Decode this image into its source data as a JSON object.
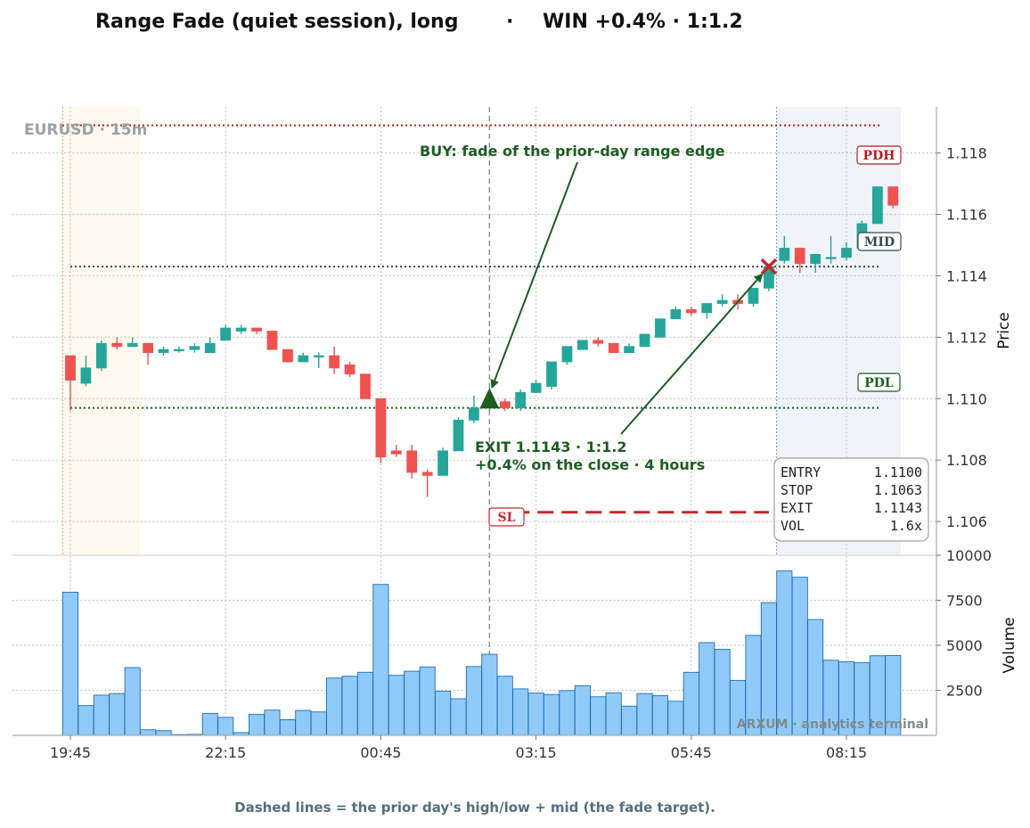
{
  "title_left": "Range Fade (quiet session), long",
  "title_sep": "·",
  "title_right": "WIN +0.4% · 1:1.2",
  "symbol_label": "EURUSD · 15m",
  "watermark": "ARXUM · analytics terminal",
  "footer": "Dashed lines = the prior day's high/low + mid (the fade target).",
  "colors": {
    "bull": "#26a69a",
    "bear": "#ef5350",
    "volume_fill": "#90caf9",
    "volume_edge": "#1f6fb2",
    "pdh": "#b71c1c",
    "pdl": "#1b5e20",
    "mid": "#37474f",
    "sl": "#c62828",
    "exit_marker": "#c62828",
    "entry_marker": "#1b5e20"
  },
  "annotations": {
    "buy": "BUY: fade of the prior-day range edge",
    "exit_line1": "EXIT 1.1143 · 1:1.2",
    "exit_line2": "+0.4% on the close  ·  4 hours",
    "pdh_tag": "PDH",
    "mid_tag": "MID",
    "pdl_tag": "PDL",
    "sl_tag": "SL"
  },
  "info_box": [
    {
      "label": "ENTRY",
      "value": "1.1100"
    },
    {
      "label": "STOP",
      "value": "1.1063"
    },
    {
      "label": "EXIT",
      "value": "1.1143"
    },
    {
      "label": "VOL",
      "value": "1.6x"
    }
  ],
  "chart_data": {
    "type": "candlestick",
    "timeframe": "15m",
    "price_axis": {
      "label": "Price",
      "range": [
        1.1049,
        1.1195
      ],
      "ticks": [
        1.106,
        1.108,
        1.11,
        1.112,
        1.114,
        1.116,
        1.118
      ],
      "tick_labels": [
        "1.106",
        "1.108",
        "1.110",
        "1.112",
        "1.114",
        "1.116",
        "1.118"
      ]
    },
    "volume_axis": {
      "label": "Volume",
      "range": [
        0,
        10000
      ],
      "ticks": [
        2500,
        5000,
        7500,
        10000
      ],
      "tick_labels": [
        "2500",
        "5000",
        "7500",
        "10000"
      ]
    },
    "x_axis": {
      "tick_labels": [
        "19:45",
        "22:15",
        "00:45",
        "03:15",
        "05:45",
        "08:15"
      ],
      "tick_bar_index": [
        0,
        10,
        20,
        30,
        40,
        50
      ]
    },
    "levels": {
      "pdh": 1.1189,
      "pdl": 1.1097,
      "mid": 1.1143,
      "stop": 1.1063
    },
    "trade": {
      "side": "long",
      "entry_bar": 27,
      "entry_price": 1.11,
      "stop": 1.1063,
      "exit_bar": 45,
      "exit_price": 1.1143,
      "result": "WIN +0.4%",
      "rr": "1:1.2"
    },
    "shaded_regions": [
      {
        "from_bar": -0.5,
        "to_bar": 4.5,
        "kind": "session"
      },
      {
        "from_bar": 45.5,
        "to_bar": 53.5,
        "kind": "session"
      }
    ],
    "candles": [
      {
        "o": 1.1114,
        "h": 1.1114,
        "l": 1.1096,
        "c": 1.1106,
        "v": 7950
      },
      {
        "o": 1.1105,
        "h": 1.1114,
        "l": 1.1104,
        "c": 1.111,
        "v": 1650
      },
      {
        "o": 1.111,
        "h": 1.1119,
        "l": 1.1109,
        "c": 1.1118,
        "v": 2230
      },
      {
        "o": 1.1118,
        "h": 1.112,
        "l": 1.1116,
        "c": 1.1117,
        "v": 2320
      },
      {
        "o": 1.1117,
        "h": 1.112,
        "l": 1.1117,
        "c": 1.1118,
        "v": 3760
      },
      {
        "o": 1.1118,
        "h": 1.1118,
        "l": 1.1111,
        "c": 1.1115,
        "v": 310
      },
      {
        "o": 1.1115,
        "h": 1.1117,
        "l": 1.1114,
        "c": 1.1116,
        "v": 260
      },
      {
        "o": 1.1116,
        "h": 1.1117,
        "l": 1.1115,
        "c": 1.1116,
        "v": 40
      },
      {
        "o": 1.1116,
        "h": 1.1118,
        "l": 1.1115,
        "c": 1.1117,
        "v": 50
      },
      {
        "o": 1.1115,
        "h": 1.112,
        "l": 1.1115,
        "c": 1.1118,
        "v": 1220
      },
      {
        "o": 1.1119,
        "h": 1.1124,
        "l": 1.1119,
        "c": 1.1123,
        "v": 1000
      },
      {
        "o": 1.1122,
        "h": 1.1124,
        "l": 1.1121,
        "c": 1.1123,
        "v": 150
      },
      {
        "o": 1.1123,
        "h": 1.1123,
        "l": 1.1121,
        "c": 1.1122,
        "v": 1160
      },
      {
        "o": 1.1122,
        "h": 1.1122,
        "l": 1.1116,
        "c": 1.1116,
        "v": 1400
      },
      {
        "o": 1.1116,
        "h": 1.1116,
        "l": 1.1112,
        "c": 1.1112,
        "v": 870
      },
      {
        "o": 1.1112,
        "h": 1.1115,
        "l": 1.1112,
        "c": 1.1114,
        "v": 1380
      },
      {
        "o": 1.1114,
        "h": 1.1115,
        "l": 1.111,
        "c": 1.1114,
        "v": 1300
      },
      {
        "o": 1.1114,
        "h": 1.1117,
        "l": 1.1108,
        "c": 1.111,
        "v": 3180
      },
      {
        "o": 1.1111,
        "h": 1.1112,
        "l": 1.1107,
        "c": 1.1108,
        "v": 3280
      },
      {
        "o": 1.1108,
        "h": 1.1108,
        "l": 1.11,
        "c": 1.11,
        "v": 3500
      },
      {
        "o": 1.11,
        "h": 1.11,
        "l": 1.1079,
        "c": 1.1081,
        "v": 8380
      },
      {
        "o": 1.1083,
        "h": 1.1085,
        "l": 1.1081,
        "c": 1.1082,
        "v": 3330
      },
      {
        "o": 1.1083,
        "h": 1.1085,
        "l": 1.1074,
        "c": 1.1076,
        "v": 3560
      },
      {
        "o": 1.1076,
        "h": 1.1077,
        "l": 1.1068,
        "c": 1.1075,
        "v": 3800
      },
      {
        "o": 1.1075,
        "h": 1.1084,
        "l": 1.1075,
        "c": 1.1083,
        "v": 2450
      },
      {
        "o": 1.1083,
        "h": 1.1094,
        "l": 1.1083,
        "c": 1.1093,
        "v": 2030
      },
      {
        "o": 1.1093,
        "h": 1.1101,
        "l": 1.1092,
        "c": 1.1097,
        "v": 3820
      },
      {
        "o": 1.1097,
        "h": 1.11,
        "l": 1.1096,
        "c": 1.1099,
        "v": 4500
      },
      {
        "o": 1.1099,
        "h": 1.11,
        "l": 1.1096,
        "c": 1.1097,
        "v": 3280
      },
      {
        "o": 1.1097,
        "h": 1.1103,
        "l": 1.1096,
        "c": 1.1102,
        "v": 2580
      },
      {
        "o": 1.1102,
        "h": 1.1106,
        "l": 1.1102,
        "c": 1.1105,
        "v": 2350
      },
      {
        "o": 1.1104,
        "h": 1.1112,
        "l": 1.1103,
        "c": 1.1112,
        "v": 2270
      },
      {
        "o": 1.1112,
        "h": 1.1117,
        "l": 1.1111,
        "c": 1.1117,
        "v": 2480
      },
      {
        "o": 1.1116,
        "h": 1.1119,
        "l": 1.1116,
        "c": 1.1119,
        "v": 2760
      },
      {
        "o": 1.1119,
        "h": 1.112,
        "l": 1.1117,
        "c": 1.1118,
        "v": 2140
      },
      {
        "o": 1.1118,
        "h": 1.1118,
        "l": 1.1115,
        "c": 1.1115,
        "v": 2360
      },
      {
        "o": 1.1115,
        "h": 1.1118,
        "l": 1.1115,
        "c": 1.1117,
        "v": 1620
      },
      {
        "o": 1.1117,
        "h": 1.1121,
        "l": 1.1117,
        "c": 1.1121,
        "v": 2320
      },
      {
        "o": 1.112,
        "h": 1.1126,
        "l": 1.112,
        "c": 1.1126,
        "v": 2200
      },
      {
        "o": 1.1126,
        "h": 1.113,
        "l": 1.1126,
        "c": 1.1129,
        "v": 1890
      },
      {
        "o": 1.1129,
        "h": 1.113,
        "l": 1.1127,
        "c": 1.1128,
        "v": 3500
      },
      {
        "o": 1.1128,
        "h": 1.1131,
        "l": 1.1126,
        "c": 1.1131,
        "v": 5150
      },
      {
        "o": 1.1131,
        "h": 1.1134,
        "l": 1.113,
        "c": 1.1132,
        "v": 4780
      },
      {
        "o": 1.1132,
        "h": 1.1134,
        "l": 1.1129,
        "c": 1.1131,
        "v": 3050
      },
      {
        "o": 1.1131,
        "h": 1.1136,
        "l": 1.113,
        "c": 1.1136,
        "v": 5550
      },
      {
        "o": 1.1136,
        "h": 1.1144,
        "l": 1.1135,
        "c": 1.1143,
        "v": 7370
      },
      {
        "o": 1.1145,
        "h": 1.1153,
        "l": 1.1144,
        "c": 1.1149,
        "v": 9130
      },
      {
        "o": 1.1149,
        "h": 1.1149,
        "l": 1.1141,
        "c": 1.1144,
        "v": 8780
      },
      {
        "o": 1.1144,
        "h": 1.1147,
        "l": 1.1141,
        "c": 1.1147,
        "v": 6430
      },
      {
        "o": 1.1146,
        "h": 1.1153,
        "l": 1.1144,
        "c": 1.1146,
        "v": 4170
      },
      {
        "o": 1.1146,
        "h": 1.1151,
        "l": 1.1145,
        "c": 1.1149,
        "v": 4080
      },
      {
        "o": 1.1149,
        "h": 1.1158,
        "l": 1.1149,
        "c": 1.1157,
        "v": 4030
      },
      {
        "o": 1.1157,
        "h": 1.1169,
        "l": 1.1157,
        "c": 1.1169,
        "v": 4420
      },
      {
        "o": 1.1169,
        "h": 1.1169,
        "l": 1.1162,
        "c": 1.1163,
        "v": 4430
      }
    ]
  }
}
